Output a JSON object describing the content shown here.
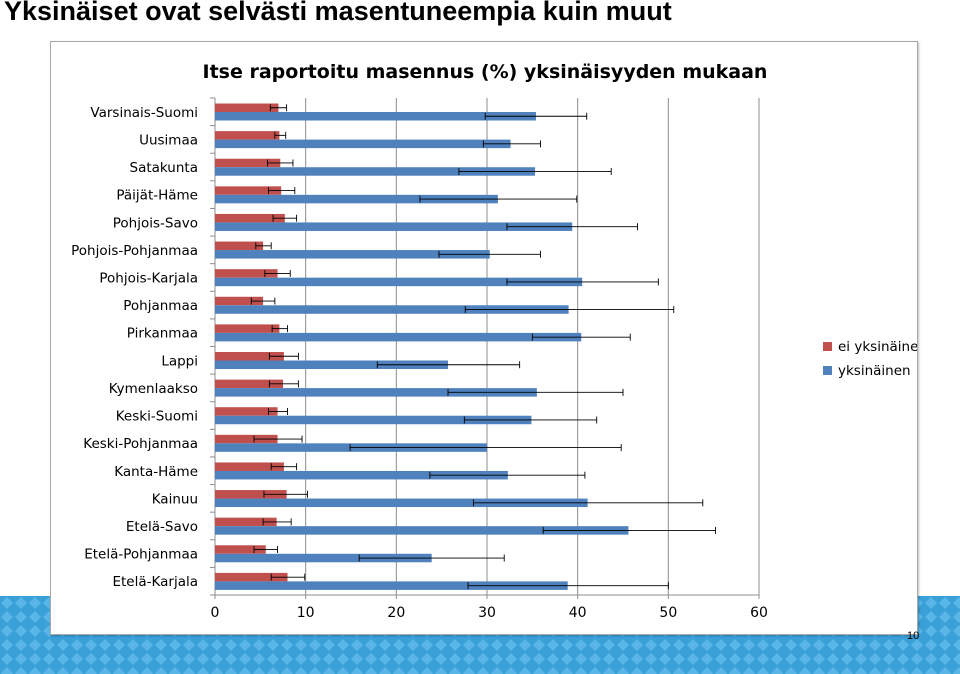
{
  "slide": {
    "title": "Yksinäiset ovat selvästi masentuneempia kuin muut",
    "page_number": "10"
  },
  "colors": {
    "ei_yksinainen": "#c0504d",
    "yksinainen": "#4f81bd",
    "band": "#3aa0d8"
  },
  "chart_data": {
    "type": "bar",
    "orientation": "horizontal",
    "title": "Itse raportoitu masennus (%) yksinäisyyden mukaan",
    "categories": [
      "Varsinais-Suomi",
      "Uusimaa",
      "Satakunta",
      "Päijät-Häme",
      "Pohjois-Savo",
      "Pohjois-Pohjanmaa",
      "Pohjois-Karjala",
      "Pohjanmaa",
      "Pirkanmaa",
      "Lappi",
      "Kymenlaakso",
      "Keski-Suomi",
      "Keski-Pohjanmaa",
      "Kanta-Häme",
      "Kainuu",
      "Etelä-Savo",
      "Etelä-Pohjanmaa",
      "Etelä-Karjala"
    ],
    "series": [
      {
        "name": "ei yksinäinen",
        "values": [
          7.0,
          7.1,
          7.2,
          7.3,
          7.7,
          5.3,
          6.9,
          5.3,
          7.1,
          7.6,
          7.5,
          6.9,
          6.9,
          7.6,
          7.9,
          6.8,
          5.6,
          8.0
        ],
        "err_low": [
          6.1,
          6.6,
          5.8,
          5.9,
          6.4,
          4.5,
          5.5,
          4.0,
          6.3,
          6.0,
          6.0,
          5.9,
          4.3,
          6.2,
          5.4,
          5.3,
          4.3,
          6.2
        ],
        "err_high": [
          7.9,
          7.8,
          8.6,
          8.8,
          9.0,
          6.2,
          8.3,
          6.6,
          8.0,
          9.2,
          9.2,
          8.0,
          9.6,
          9.0,
          10.2,
          8.4,
          6.9,
          9.9
        ]
      },
      {
        "name": "yksinäinen",
        "values": [
          35.4,
          32.6,
          35.3,
          31.2,
          39.4,
          30.3,
          40.5,
          39.0,
          40.4,
          25.7,
          35.5,
          34.9,
          30.0,
          32.3,
          41.1,
          45.6,
          23.9,
          38.9
        ],
        "err_low": [
          29.8,
          29.6,
          26.9,
          22.6,
          32.2,
          24.7,
          32.2,
          27.6,
          35.0,
          17.9,
          25.7,
          27.5,
          14.9,
          23.7,
          28.5,
          36.2,
          15.9,
          27.9
        ],
        "err_high": [
          41.0,
          35.9,
          43.7,
          39.9,
          46.6,
          35.9,
          48.9,
          50.6,
          45.8,
          33.6,
          45.0,
          42.1,
          44.8,
          40.8,
          53.8,
          55.2,
          31.9,
          50.0
        ]
      }
    ],
    "xlim": [
      0,
      60
    ],
    "x_ticks": [
      0,
      10,
      20,
      30,
      40,
      50,
      60
    ],
    "grid": true,
    "legend_position": "right"
  }
}
